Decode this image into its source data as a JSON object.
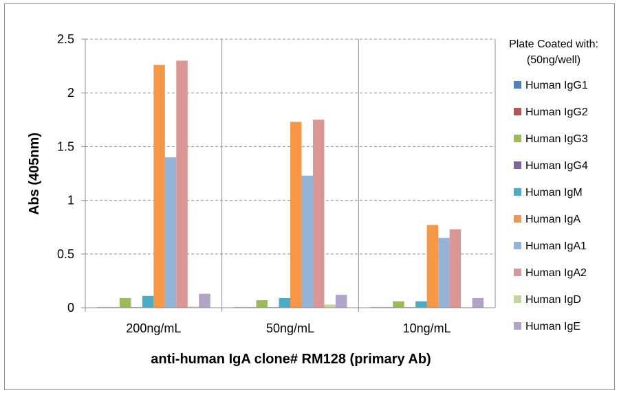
{
  "chart_data": {
    "type": "bar",
    "title": "",
    "xlabel": "anti-human IgA clone# RM128 (primary Ab)",
    "ylabel": "Abs (405nm)",
    "ylim": [
      0,
      2.5
    ],
    "yticks": [
      "0",
      "0.5",
      "1",
      "1.5",
      "2",
      "2.5"
    ],
    "grid": "horizontal dashed",
    "legend_position": "right",
    "legend_title": [
      "Plate Coated with:",
      "(50ng/well)"
    ],
    "categories": [
      "200ng/mL",
      "50ng/mL",
      "10ng/mL"
    ],
    "series": [
      {
        "name": "Human IgG1",
        "color": "#4f81bd",
        "values": [
          0.005,
          0.005,
          0.005
        ]
      },
      {
        "name": "Human IgG2",
        "color": "#c0504d",
        "values": [
          0.005,
          0.005,
          0.005
        ]
      },
      {
        "name": "Human IgG3",
        "color": "#9bbb59",
        "values": [
          0.09,
          0.07,
          0.06
        ]
      },
      {
        "name": "Human IgG4",
        "color": "#8064a2",
        "values": [
          0.005,
          0.005,
          0.005
        ]
      },
      {
        "name": "Human IgM",
        "color": "#4bacc6",
        "values": [
          0.11,
          0.09,
          0.06
        ]
      },
      {
        "name": "Human IgA",
        "color": "#f79646",
        "values": [
          2.26,
          1.73,
          0.77
        ]
      },
      {
        "name": "Human IgA1",
        "color": "#95b3d7",
        "values": [
          1.4,
          1.23,
          0.65
        ]
      },
      {
        "name": "Human IgA2",
        "color": "#d99694",
        "values": [
          2.3,
          1.75,
          0.73
        ]
      },
      {
        "name": "Human IgD",
        "color": "#c3d69b",
        "values": [
          0.01,
          0.03,
          0.005
        ]
      },
      {
        "name": "Human IgE",
        "color": "#b2a2c7",
        "values": [
          0.13,
          0.12,
          0.09
        ]
      }
    ]
  }
}
